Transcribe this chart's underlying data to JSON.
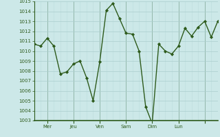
{
  "x_values": [
    0,
    1,
    2,
    3,
    4,
    5,
    6,
    7,
    8,
    9,
    10,
    11,
    12,
    13,
    14,
    15,
    16,
    17,
    18,
    19,
    20,
    21,
    22,
    23,
    24,
    25,
    26,
    27,
    28
  ],
  "y_values": [
    1010.7,
    1010.5,
    1011.3,
    1010.5,
    1007.7,
    1007.9,
    1008.7,
    1009.0,
    1007.3,
    1005.0,
    1008.9,
    1014.1,
    1014.8,
    1013.3,
    1011.8,
    1011.7,
    1010.0,
    1004.4,
    1002.7,
    1010.7,
    1010.0,
    1009.7,
    1010.5,
    1012.3,
    1011.5,
    1012.4,
    1013.0,
    1011.4,
    1013.0
  ],
  "day_positions": [
    2,
    6,
    10,
    14,
    18,
    22,
    26
  ],
  "day_labels": [
    "Mer",
    "Jeu",
    "Ven",
    "Sam",
    "Dim",
    "Lun",
    ""
  ],
  "ylim": [
    1003,
    1015
  ],
  "yticks": [
    1003,
    1004,
    1005,
    1006,
    1007,
    1008,
    1009,
    1010,
    1011,
    1012,
    1013,
    1014,
    1015
  ],
  "line_color": "#2d5a1b",
  "marker_color": "#2d5a1b",
  "bg_color": "#cce8e8",
  "grid_major_color": "#aacece",
  "grid_minor_color": "#bbdddd",
  "axis_color": "#2d5a1b",
  "tick_label_color": "#2d5a1b",
  "figsize": [
    3.2,
    2.0
  ],
  "dpi": 100
}
